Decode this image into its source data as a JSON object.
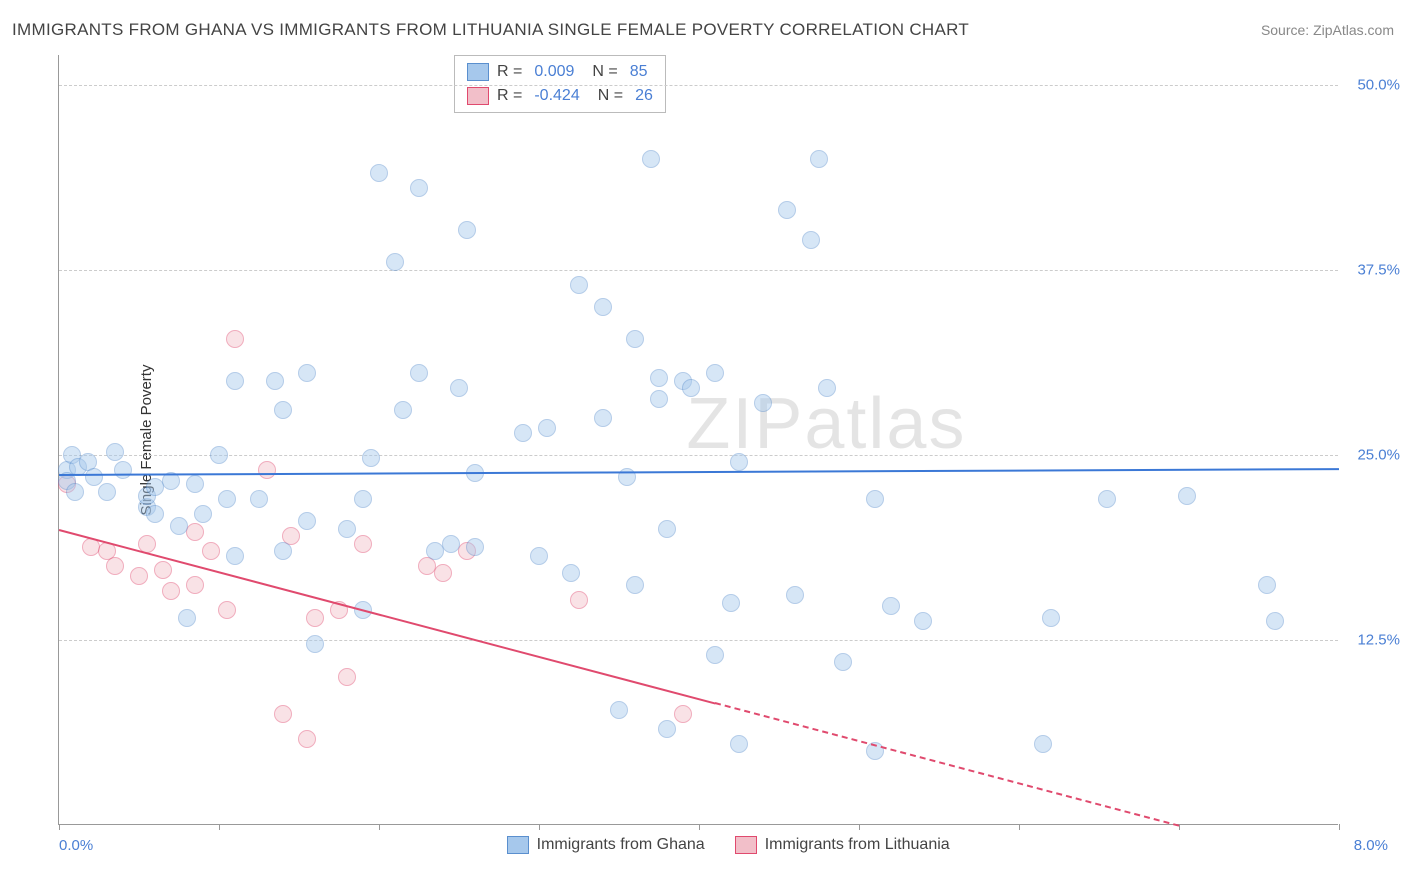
{
  "title": "IMMIGRANTS FROM GHANA VS IMMIGRANTS FROM LITHUANIA SINGLE FEMALE POVERTY CORRELATION CHART",
  "source": "Source: ZipAtlas.com",
  "watermark": "ZIPatlas",
  "y_axis_label": "Single Female Poverty",
  "chart": {
    "type": "scatter",
    "background_color": "#ffffff",
    "grid_color": "#cccccc",
    "axis_color": "#999999",
    "xlim": [
      0.0,
      8.0
    ],
    "ylim": [
      0.0,
      52.0
    ],
    "y_ticks": [
      12.5,
      25.0,
      37.5,
      50.0
    ],
    "y_tick_labels": [
      "12.5%",
      "25.0%",
      "37.5%",
      "50.0%"
    ],
    "x_left_label": "0.0%",
    "x_right_label": "8.0%",
    "x_tick_positions": [
      0.0,
      1.0,
      2.0,
      3.0,
      4.0,
      5.0,
      6.0,
      7.0,
      8.0
    ],
    "point_radius": 9,
    "point_opacity": 0.45,
    "series": [
      {
        "name": "Immigrants from Ghana",
        "color_fill": "#a6c8ec",
        "color_stroke": "#5a8fce",
        "R": "0.009",
        "N": "85",
        "trend": {
          "x1": 0.0,
          "y1": 23.7,
          "x2": 8.0,
          "y2": 24.1,
          "color": "#3b78d6",
          "dashed_from_x": null
        },
        "points": [
          {
            "x": 0.05,
            "y": 24.0
          },
          {
            "x": 0.05,
            "y": 23.2
          },
          {
            "x": 0.08,
            "y": 25.0
          },
          {
            "x": 0.1,
            "y": 22.5
          },
          {
            "x": 0.12,
            "y": 24.2
          },
          {
            "x": 0.3,
            "y": 22.5
          },
          {
            "x": 0.35,
            "y": 25.2
          },
          {
            "x": 0.55,
            "y": 21.5
          },
          {
            "x": 0.55,
            "y": 22.2
          },
          {
            "x": 0.6,
            "y": 21.0
          },
          {
            "x": 0.6,
            "y": 22.8
          },
          {
            "x": 0.7,
            "y": 23.2
          },
          {
            "x": 0.75,
            "y": 20.2
          },
          {
            "x": 0.8,
            "y": 14.0
          },
          {
            "x": 0.85,
            "y": 23.0
          },
          {
            "x": 0.9,
            "y": 21.0
          },
          {
            "x": 1.0,
            "y": 25.0
          },
          {
            "x": 1.05,
            "y": 22.0
          },
          {
            "x": 1.1,
            "y": 30.0
          },
          {
            "x": 1.1,
            "y": 18.2
          },
          {
            "x": 1.25,
            "y": 22.0
          },
          {
            "x": 1.35,
            "y": 30.0
          },
          {
            "x": 1.4,
            "y": 28.0
          },
          {
            "x": 1.4,
            "y": 18.5
          },
          {
            "x": 1.55,
            "y": 30.5
          },
          {
            "x": 1.55,
            "y": 20.5
          },
          {
            "x": 1.6,
            "y": 12.2
          },
          {
            "x": 1.8,
            "y": 20.0
          },
          {
            "x": 1.9,
            "y": 14.5
          },
          {
            "x": 1.9,
            "y": 22.0
          },
          {
            "x": 1.95,
            "y": 24.8
          },
          {
            "x": 2.0,
            "y": 44.0
          },
          {
            "x": 2.1,
            "y": 38.0
          },
          {
            "x": 2.15,
            "y": 28.0
          },
          {
            "x": 2.25,
            "y": 43.0
          },
          {
            "x": 2.25,
            "y": 30.5
          },
          {
            "x": 2.35,
            "y": 18.5
          },
          {
            "x": 2.45,
            "y": 19.0
          },
          {
            "x": 2.5,
            "y": 29.5
          },
          {
            "x": 2.55,
            "y": 40.2
          },
          {
            "x": 2.6,
            "y": 23.8
          },
          {
            "x": 2.6,
            "y": 18.8
          },
          {
            "x": 2.9,
            "y": 26.5
          },
          {
            "x": 3.0,
            "y": 18.2
          },
          {
            "x": 3.05,
            "y": 26.8
          },
          {
            "x": 3.2,
            "y": 17.0
          },
          {
            "x": 3.25,
            "y": 36.5
          },
          {
            "x": 3.4,
            "y": 27.5
          },
          {
            "x": 3.4,
            "y": 35.0
          },
          {
            "x": 3.5,
            "y": 7.8
          },
          {
            "x": 3.55,
            "y": 23.5
          },
          {
            "x": 3.6,
            "y": 32.8
          },
          {
            "x": 3.6,
            "y": 16.2
          },
          {
            "x": 3.7,
            "y": 45.0
          },
          {
            "x": 3.75,
            "y": 30.2
          },
          {
            "x": 3.75,
            "y": 28.8
          },
          {
            "x": 3.8,
            "y": 20.0
          },
          {
            "x": 3.8,
            "y": 6.5
          },
          {
            "x": 3.9,
            "y": 30.0
          },
          {
            "x": 3.95,
            "y": 29.5
          },
          {
            "x": 4.1,
            "y": 11.5
          },
          {
            "x": 4.1,
            "y": 30.5
          },
          {
            "x": 4.2,
            "y": 15.0
          },
          {
            "x": 4.25,
            "y": 24.5
          },
          {
            "x": 4.25,
            "y": 5.5
          },
          {
            "x": 4.4,
            "y": 28.5
          },
          {
            "x": 4.55,
            "y": 41.5
          },
          {
            "x": 4.6,
            "y": 15.5
          },
          {
            "x": 4.7,
            "y": 39.5
          },
          {
            "x": 4.75,
            "y": 45.0
          },
          {
            "x": 4.8,
            "y": 29.5
          },
          {
            "x": 4.9,
            "y": 11.0
          },
          {
            "x": 5.1,
            "y": 22.0
          },
          {
            "x": 5.1,
            "y": 5.0
          },
          {
            "x": 5.2,
            "y": 14.8
          },
          {
            "x": 5.4,
            "y": 13.8
          },
          {
            "x": 6.15,
            "y": 5.5
          },
          {
            "x": 6.2,
            "y": 14.0
          },
          {
            "x": 6.55,
            "y": 22.0
          },
          {
            "x": 7.05,
            "y": 22.2
          },
          {
            "x": 7.55,
            "y": 16.2
          },
          {
            "x": 7.6,
            "y": 13.8
          },
          {
            "x": 0.4,
            "y": 24.0
          },
          {
            "x": 0.18,
            "y": 24.5
          },
          {
            "x": 0.22,
            "y": 23.5
          }
        ]
      },
      {
        "name": "Immigrants from Lithuania",
        "color_fill": "#f2bfc9",
        "color_stroke": "#e04a6e",
        "R": "-0.424",
        "N": "26",
        "trend": {
          "x1": 0.0,
          "y1": 20.0,
          "x2": 7.0,
          "y2": 0.0,
          "color": "#e04a6e",
          "dashed_from_x": 4.1
        },
        "points": [
          {
            "x": 0.05,
            "y": 23.0
          },
          {
            "x": 0.2,
            "y": 18.8
          },
          {
            "x": 0.3,
            "y": 18.5
          },
          {
            "x": 0.35,
            "y": 17.5
          },
          {
            "x": 0.5,
            "y": 16.8
          },
          {
            "x": 0.55,
            "y": 19.0
          },
          {
            "x": 0.65,
            "y": 17.2
          },
          {
            "x": 0.7,
            "y": 15.8
          },
          {
            "x": 0.85,
            "y": 19.8
          },
          {
            "x": 0.85,
            "y": 16.2
          },
          {
            "x": 0.95,
            "y": 18.5
          },
          {
            "x": 1.05,
            "y": 14.5
          },
          {
            "x": 1.1,
            "y": 32.8
          },
          {
            "x": 1.3,
            "y": 24.0
          },
          {
            "x": 1.4,
            "y": 7.5
          },
          {
            "x": 1.45,
            "y": 19.5
          },
          {
            "x": 1.55,
            "y": 5.8
          },
          {
            "x": 1.6,
            "y": 14.0
          },
          {
            "x": 1.75,
            "y": 14.5
          },
          {
            "x": 1.8,
            "y": 10.0
          },
          {
            "x": 1.9,
            "y": 19.0
          },
          {
            "x": 2.3,
            "y": 17.5
          },
          {
            "x": 2.4,
            "y": 17.0
          },
          {
            "x": 2.55,
            "y": 18.5
          },
          {
            "x": 3.25,
            "y": 15.2
          },
          {
            "x": 3.9,
            "y": 7.5
          }
        ]
      }
    ]
  }
}
